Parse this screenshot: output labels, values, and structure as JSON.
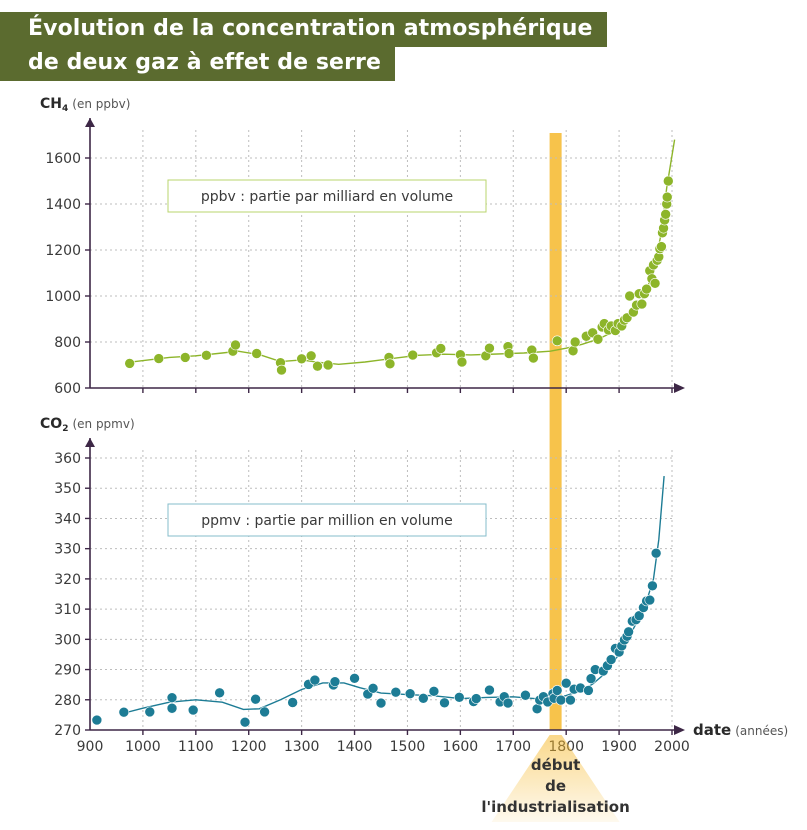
{
  "title": {
    "line1": "Évolution de la concentration atmosphérique",
    "line2": "de deux gaz à effet de serre"
  },
  "colors": {
    "title_bg": "#5b6b2f",
    "ch4": "#8db52a",
    "ch4_box_border": "#b9d46e",
    "co2": "#1d7c95",
    "co2_box_border": "#86bccb",
    "industrialisation": "#f6b82b",
    "axis": "#3d2746",
    "grid": "#bdbdbd"
  },
  "annotation": {
    "line1": "début",
    "line2": "de",
    "line3": "l'industrialisation"
  },
  "chart_data": [
    {
      "type": "scatter",
      "ylabel_main": "CH",
      "ylabel_sub": "4",
      "ylabel_unit": "(en ppbv)",
      "legend_box": "ppbv : partie par milliard en volume",
      "xlim": [
        900,
        2000
      ],
      "ylim": [
        600,
        1700
      ],
      "yticks": [
        "600",
        "800",
        "1000",
        "1200",
        "1400",
        "1600"
      ],
      "grid": true,
      "series": [
        {
          "points": [
            [
              975,
              707
            ],
            [
              1030,
              728
            ],
            [
              1080,
              733
            ],
            [
              1120,
              742
            ],
            [
              1170,
              760
            ],
            [
              1175,
              787
            ],
            [
              1215,
              750
            ],
            [
              1260,
              710
            ],
            [
              1262,
              678
            ],
            [
              1300,
              727
            ],
            [
              1318,
              740
            ],
            [
              1330,
              695
            ],
            [
              1350,
              700
            ],
            [
              1465,
              733
            ],
            [
              1467,
              705
            ],
            [
              1510,
              743
            ],
            [
              1555,
              753
            ],
            [
              1563,
              772
            ],
            [
              1600,
              745
            ],
            [
              1603,
              713
            ],
            [
              1648,
              740
            ],
            [
              1655,
              773
            ],
            [
              1690,
              780
            ],
            [
              1692,
              750
            ],
            [
              1735,
              765
            ],
            [
              1738,
              730
            ],
            [
              1783,
              805
            ],
            [
              1813,
              762
            ],
            [
              1817,
              800
            ],
            [
              1838,
              825
            ],
            [
              1850,
              840
            ],
            [
              1860,
              812
            ],
            [
              1868,
              865
            ],
            [
              1872,
              880
            ],
            [
              1880,
              852
            ],
            [
              1885,
              870
            ],
            [
              1893,
              850
            ],
            [
              1898,
              880
            ],
            [
              1905,
              870
            ],
            [
              1910,
              895
            ],
            [
              1915,
              905
            ],
            [
              1920,
              1000
            ],
            [
              1927,
              930
            ],
            [
              1933,
              960
            ],
            [
              1938,
              1010
            ],
            [
              1943,
              965
            ],
            [
              1948,
              1010
            ],
            [
              1952,
              1030
            ],
            [
              1958,
              1110
            ],
            [
              1962,
              1075
            ],
            [
              1965,
              1135
            ],
            [
              1968,
              1055
            ],
            [
              1972,
              1155
            ],
            [
              1975,
              1170
            ],
            [
              1977,
              1205
            ],
            [
              1980,
              1215
            ],
            [
              1982,
              1275
            ],
            [
              1984,
              1295
            ],
            [
              1986,
              1330
            ],
            [
              1988,
              1355
            ],
            [
              1990,
              1400
            ],
            [
              1991,
              1430
            ],
            [
              1993,
              1500
            ]
          ],
          "trend": [
            [
              975,
              712
            ],
            [
              1050,
              733
            ],
            [
              1100,
              740
            ],
            [
              1150,
              752
            ],
            [
              1180,
              760
            ],
            [
              1220,
              745
            ],
            [
              1260,
              715
            ],
            [
              1300,
              722
            ],
            [
              1330,
              712
            ],
            [
              1370,
              703
            ],
            [
              1420,
              713
            ],
            [
              1470,
              728
            ],
            [
              1520,
              742
            ],
            [
              1570,
              747
            ],
            [
              1620,
              744
            ],
            [
              1670,
              748
            ],
            [
              1720,
              752
            ],
            [
              1770,
              760
            ],
            [
              1800,
              773
            ],
            [
              1830,
              790
            ],
            [
              1860,
              812
            ],
            [
              1890,
              845
            ],
            [
              1910,
              875
            ],
            [
              1930,
              930
            ],
            [
              1950,
              1010
            ],
            [
              1960,
              1080
            ],
            [
              1970,
              1165
            ],
            [
              1980,
              1275
            ],
            [
              1990,
              1470
            ],
            [
              2005,
              1680
            ]
          ]
        }
      ]
    },
    {
      "type": "scatter",
      "ylabel_main": "CO",
      "ylabel_sub": "2",
      "ylabel_unit": "(en ppmv)",
      "legend_box": "ppmv : partie par million en volume",
      "xlabel": "date",
      "xlabel_unit": "(années)",
      "xlim": [
        900,
        2000
      ],
      "ylim": [
        270,
        360
      ],
      "xticks": [
        "900",
        "1000",
        "1100",
        "1200",
        "1300",
        "1400",
        "1500",
        "1600",
        "1700",
        "1800",
        "1900",
        "2000"
      ],
      "yticks": [
        "270",
        "280",
        "290",
        "300",
        "310",
        "320",
        "330",
        "340",
        "350",
        "360"
      ],
      "grid": true,
      "industrialisation_year": 1780,
      "series": [
        {
          "points": [
            [
              913,
              273.3
            ],
            [
              964,
              275.9
            ],
            [
              1013,
              276.0
            ],
            [
              1055,
              280.7
            ],
            [
              1055,
              277.2
            ],
            [
              1095,
              276.6
            ],
            [
              1145,
              282.3
            ],
            [
              1193,
              272.6
            ],
            [
              1213,
              280.2
            ],
            [
              1230,
              276.0
            ],
            [
              1283,
              279.1
            ],
            [
              1313,
              285.1
            ],
            [
              1325,
              286.5
            ],
            [
              1360,
              284.9
            ],
            [
              1363,
              286.0
            ],
            [
              1400,
              287.1
            ],
            [
              1425,
              281.9
            ],
            [
              1435,
              283.8
            ],
            [
              1450,
              278.9
            ],
            [
              1478,
              282.5
            ],
            [
              1505,
              282.0
            ],
            [
              1530,
              280.5
            ],
            [
              1550,
              282.8
            ],
            [
              1570,
              279.0
            ],
            [
              1598,
              280.8
            ],
            [
              1625,
              279.4
            ],
            [
              1630,
              280.4
            ],
            [
              1655,
              283.2
            ],
            [
              1675,
              279.3
            ],
            [
              1683,
              281.0
            ],
            [
              1690,
              278.9
            ],
            [
              1723,
              281.5
            ],
            [
              1745,
              277.0
            ],
            [
              1750,
              279.9
            ],
            [
              1757,
              281.0
            ],
            [
              1765,
              279.3
            ],
            [
              1775,
              282.0
            ],
            [
              1777,
              280.5
            ],
            [
              1783,
              283.1
            ],
            [
              1790,
              279.9
            ],
            [
              1800,
              285.5
            ],
            [
              1808,
              279.9
            ],
            [
              1815,
              283.5
            ],
            [
              1827,
              283.9
            ],
            [
              1842,
              283.1
            ],
            [
              1847,
              287.0
            ],
            [
              1855,
              290.0
            ],
            [
              1870,
              289.5
            ],
            [
              1878,
              291.3
            ],
            [
              1885,
              293.3
            ],
            [
              1893,
              297.0
            ],
            [
              1900,
              295.8
            ],
            [
              1905,
              297.8
            ],
            [
              1910,
              299.8
            ],
            [
              1915,
              301.0
            ],
            [
              1918,
              302.5
            ],
            [
              1925,
              306.0
            ],
            [
              1932,
              306.5
            ],
            [
              1938,
              307.8
            ],
            [
              1946,
              310.5
            ],
            [
              1952,
              312.7
            ],
            [
              1958,
              313.0
            ],
            [
              1963,
              317.7
            ],
            [
              1970,
              328.5
            ]
          ],
          "trend": [
            [
              964,
              275.6
            ],
            [
              1000,
              277.2
            ],
            [
              1050,
              279.2
            ],
            [
              1100,
              280.0
            ],
            [
              1150,
              279.2
            ],
            [
              1190,
              276.8
            ],
            [
              1220,
              277.0
            ],
            [
              1260,
              280.0
            ],
            [
              1300,
              283.4
            ],
            [
              1340,
              285.6
            ],
            [
              1380,
              285.6
            ],
            [
              1410,
              284.0
            ],
            [
              1450,
              282.2
            ],
            [
              1500,
              281.7
            ],
            [
              1550,
              281.3
            ],
            [
              1600,
              280.4
            ],
            [
              1650,
              280.8
            ],
            [
              1700,
              281.0
            ],
            [
              1740,
              280.4
            ],
            [
              1770,
              280.0
            ],
            [
              1800,
              281.4
            ],
            [
              1830,
              283.2
            ],
            [
              1850,
              285.2
            ],
            [
              1870,
              288.2
            ],
            [
              1890,
              292.5
            ],
            [
              1910,
              298.0
            ],
            [
              1930,
              304.5
            ],
            [
              1950,
              311.5
            ],
            [
              1965,
              320.0
            ],
            [
              1975,
              333.0
            ],
            [
              1985,
              354.0
            ]
          ]
        }
      ]
    }
  ]
}
